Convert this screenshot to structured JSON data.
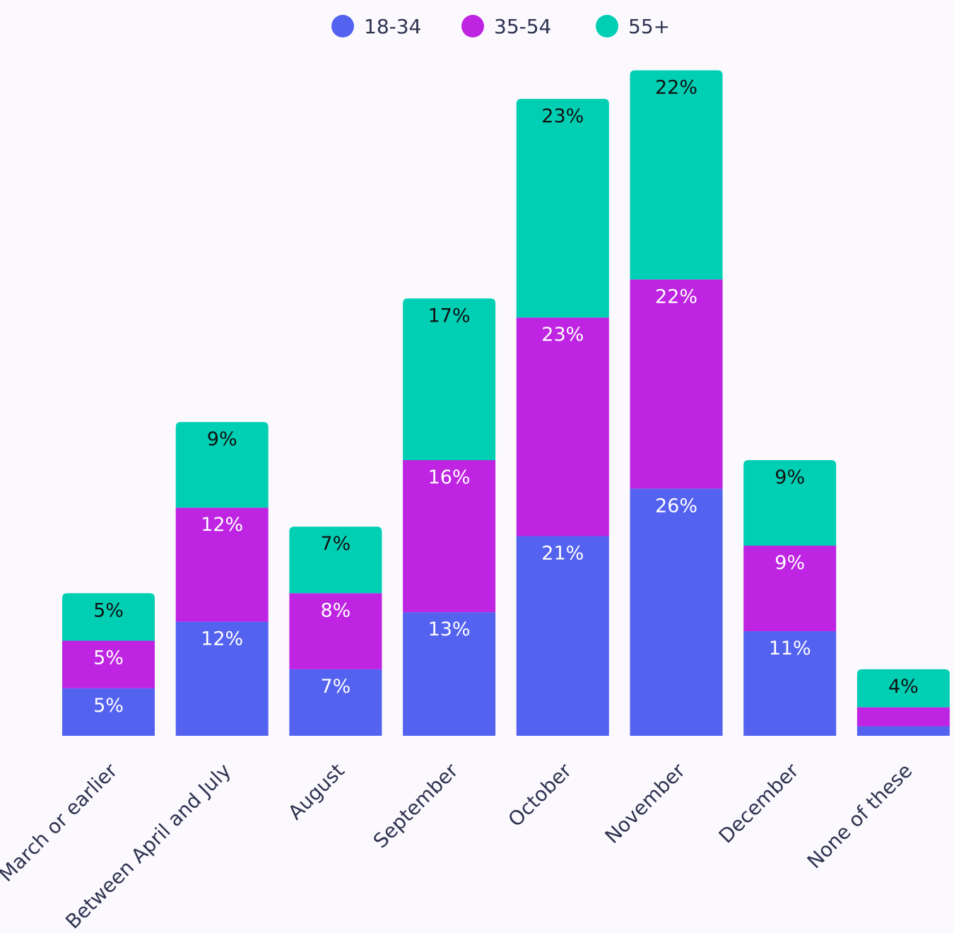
{
  "chart_data": {
    "type": "bar",
    "stacked": true,
    "categories": [
      "March or earlier",
      "Between April and July",
      "August",
      "September",
      "October",
      "November",
      "December",
      "None of these"
    ],
    "series": [
      {
        "name": "18-34",
        "color": "#5462f0",
        "values": [
          5,
          12,
          7,
          13,
          21,
          26,
          11,
          1
        ],
        "labels": [
          "5%",
          "12%",
          "7%",
          "13%",
          "21%",
          "26%",
          "11%",
          ""
        ],
        "label_color": "#ffffff"
      },
      {
        "name": "35-54",
        "color": "#be24e1",
        "values": [
          5,
          12,
          8,
          16,
          23,
          22,
          9,
          2
        ],
        "labels": [
          "5%",
          "12%",
          "8%",
          "16%",
          "23%",
          "22%",
          "9%",
          ""
        ],
        "label_color": "#ffffff"
      },
      {
        "name": "55+",
        "color": "#00cfb4",
        "values": [
          5,
          9,
          7,
          17,
          23,
          22,
          9,
          4
        ],
        "labels": [
          "5%",
          "9%",
          "7%",
          "17%",
          "23%",
          "22%",
          "9%",
          "4%"
        ],
        "label_color": "#111111"
      }
    ],
    "legend_position": "top-center",
    "grid": false,
    "ylim": [
      0,
      70
    ]
  }
}
